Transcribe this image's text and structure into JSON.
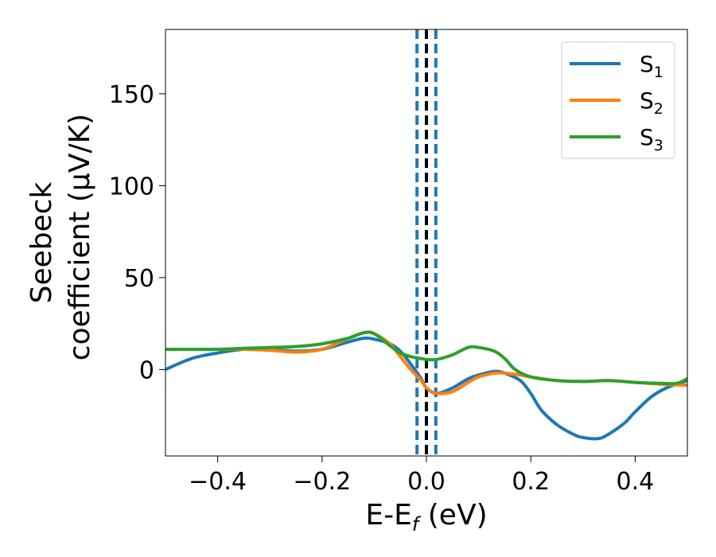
{
  "chart_data": {
    "type": "line",
    "title": "",
    "xlabel": "E-E",
    "xlabel_sub": "f",
    "xlabel_unit": " (eV)",
    "ylabel_line1": "Seebeck",
    "ylabel_line2": "coefficient  (μV/K)",
    "xlim": [
      -0.5,
      0.5
    ],
    "ylim": [
      -47,
      185
    ],
    "xticks": [
      -0.4,
      -0.2,
      0.0,
      0.2,
      0.4
    ],
    "xtick_labels": [
      "−0.4",
      "−0.2",
      "0.0",
      "0.2",
      "0.4"
    ],
    "yticks": [
      0,
      50,
      100,
      150
    ],
    "ytick_labels": [
      "0",
      "50",
      "100",
      "150"
    ],
    "grid": false,
    "legend_position": "top-right",
    "vlines": [
      {
        "x": 0.0,
        "color": "#000000",
        "style": "dashed"
      },
      {
        "x": -0.018,
        "color": "#1f77b4",
        "style": "dashed"
      },
      {
        "x": 0.018,
        "color": "#1f77b4",
        "style": "dashed"
      }
    ],
    "series": [
      {
        "name": "S",
        "sub": "1",
        "color": "#1f77b4",
        "x": [
          -0.5,
          -0.45,
          -0.4,
          -0.35,
          -0.3,
          -0.25,
          -0.2,
          -0.15,
          -0.12,
          -0.1,
          -0.07,
          -0.05,
          -0.03,
          -0.01,
          0.0,
          0.02,
          0.05,
          0.08,
          0.1,
          0.13,
          0.15,
          0.18,
          0.2,
          0.22,
          0.25,
          0.28,
          0.3,
          0.33,
          0.35,
          0.38,
          0.4,
          0.43,
          0.46,
          0.5
        ],
        "y": [
          0,
          6,
          9,
          11,
          11,
          10,
          11,
          15,
          17,
          16.5,
          14,
          10,
          3,
          -5,
          -10,
          -13,
          -10,
          -5,
          -3,
          -1,
          -2,
          -6,
          -13,
          -22,
          -30,
          -35,
          -37,
          -37.5,
          -35,
          -29,
          -23,
          -15,
          -10,
          -6
        ]
      },
      {
        "name": "S",
        "sub": "2",
        "color": "#ff7f0e",
        "x": [
          -0.5,
          -0.45,
          -0.4,
          -0.35,
          -0.3,
          -0.25,
          -0.2,
          -0.15,
          -0.12,
          -0.1,
          -0.07,
          -0.05,
          -0.03,
          -0.01,
          0.0,
          0.02,
          0.05,
          0.08,
          0.1,
          0.13,
          0.15,
          0.18,
          0.2,
          0.25,
          0.3,
          0.35,
          0.4,
          0.45,
          0.5
        ],
        "y": [
          11,
          11,
          11,
          11,
          10.5,
          9.5,
          11,
          17,
          20,
          19.5,
          14,
          7,
          0,
          -6,
          -10,
          -13,
          -12,
          -7,
          -4,
          -2,
          -2,
          -3,
          -4,
          -6,
          -6.5,
          -6,
          -7,
          -8,
          -8.5
        ]
      },
      {
        "name": "S",
        "sub": "3",
        "color": "#2ca02c",
        "x": [
          -0.5,
          -0.45,
          -0.4,
          -0.35,
          -0.3,
          -0.25,
          -0.2,
          -0.15,
          -0.12,
          -0.1,
          -0.07,
          -0.05,
          -0.03,
          -0.01,
          0.0,
          0.02,
          0.05,
          0.08,
          0.1,
          0.13,
          0.15,
          0.17,
          0.2,
          0.25,
          0.3,
          0.35,
          0.4,
          0.45,
          0.48,
          0.5
        ],
        "y": [
          11,
          11,
          11,
          11.5,
          12,
          12.5,
          14,
          17,
          20,
          19.5,
          13,
          9,
          7,
          6,
          5.5,
          5.5,
          8,
          12,
          12,
          10,
          6,
          0,
          -4,
          -6,
          -6.5,
          -6,
          -7,
          -7.5,
          -7.5,
          -5
        ]
      }
    ]
  }
}
